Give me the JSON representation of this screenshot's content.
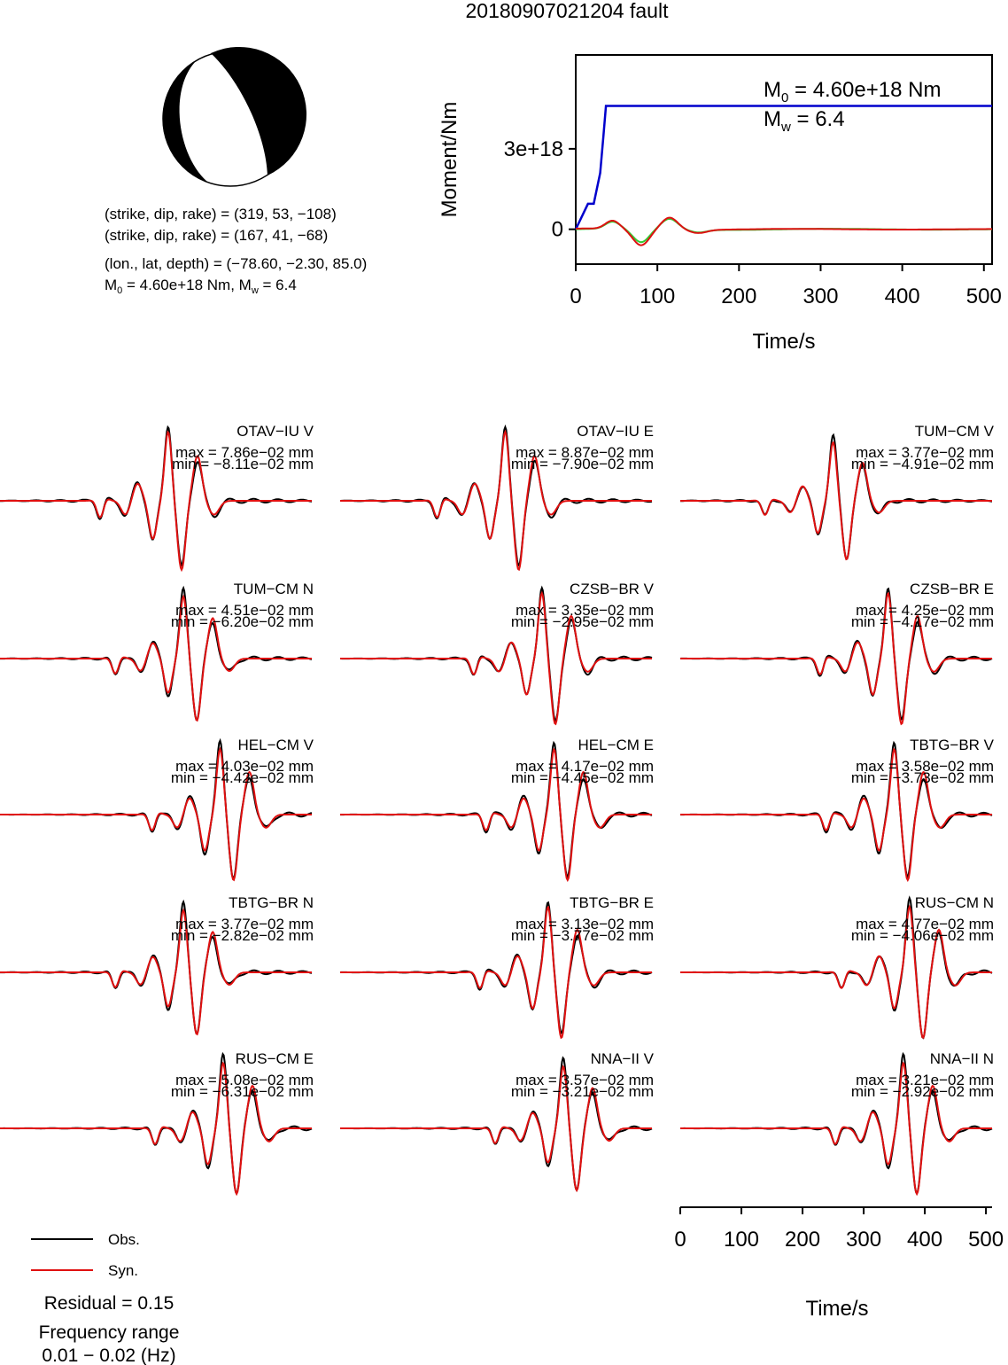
{
  "title": "20180907021204 fault",
  "mechanism": {
    "line1": "(strike, dip, rake) = (319, 53, −108)",
    "line2": "(strike, dip, rake) = (167, 41, −68)",
    "line3": "(lon., lat, depth) = (−78.60, −2.30, 85.0)",
    "line4_prefix": "M",
    "line4_sub": "0",
    "line4_mid": " = 4.60e+18 Nm, M",
    "line4_sub2": "w",
    "line4_suffix": " = 6.4"
  },
  "colors": {
    "obs": "#000000",
    "syn": "#e01010",
    "moment": "#0000cc",
    "green": "#33cc33",
    "red_stf": "#dd1111"
  },
  "chart_data": [
    {
      "type": "line",
      "name": "moment-rate",
      "xlabel": "Time/s",
      "ylabel": "Moment/Nm",
      "xlim": [
        0,
        510
      ],
      "ylim": [
        -1.3e+18,
        6.5e+18
      ],
      "xticks": [
        "0",
        "100",
        "200",
        "300",
        "400",
        "500"
      ],
      "yticks": [
        "0",
        "3e+18"
      ],
      "annot_m0_prefix": "M",
      "annot_m0_sub": "0",
      "annot_m0_suffix": " = 4.60e+18 Nm",
      "annot_mw_prefix": "M",
      "annot_mw_sub": "w",
      "annot_mw_suffix": " = 6.4",
      "cumulative": {
        "x": [
          0,
          15,
          22,
          22,
          30,
          34,
          37,
          60,
          510
        ],
        "y": [
          0,
          9.5e+17,
          9.5e+17,
          9.5e+17,
          2.1e+18,
          3.5e+18,
          4.6e+18,
          4.6e+18,
          4.6e+18
        ]
      }
    },
    {
      "type": "line",
      "name": "waveforms",
      "xlabel": "Time/s",
      "xlim": [
        0,
        510
      ],
      "xticks": [
        "0",
        "100",
        "200",
        "300",
        "400",
        "500"
      ],
      "legend": [
        "Obs.",
        "Syn."
      ],
      "residual": "Residual = 0.15",
      "freq_label": "Frequency range",
      "freq_range": "0.01 − 0.02 (Hz)",
      "stations": [
        {
          "name": "OTAV−IU V",
          "max": "max = 7.86e−02 mm",
          "min": "min = −8.11e−02 mm",
          "center": 275,
          "amp": 1.0
        },
        {
          "name": "OTAV−IU E",
          "max": "max = 8.87e−02 mm",
          "min": "min = −7.90e−02 mm",
          "center": 270,
          "amp": 1.0
        },
        {
          "name": "TUM−CM V",
          "max": "max = 3.77e−02 mm",
          "min": "min = −4.91e−02 mm",
          "center": 250,
          "amp": 0.85
        },
        {
          "name": "TUM−CM N",
          "max": "max = 4.51e−02 mm",
          "min": "min = −6.20e−02 mm",
          "center": 300,
          "amp": 0.9
        },
        {
          "name": "CZSB−BR V",
          "max": "max = 3.35e−02 mm",
          "min": "min = −2.95e−02 mm",
          "center": 330,
          "amp": 0.95
        },
        {
          "name": "CZSB−BR E",
          "max": "max = 4.25e−02 mm",
          "min": "min = −4.17e−02 mm",
          "center": 340,
          "amp": 0.95
        },
        {
          "name": "HEL−CM V",
          "max": "max = 4.03e−02 mm",
          "min": "min = −4.42e−02 mm",
          "center": 360,
          "amp": 0.95
        },
        {
          "name": "HEL−CM E",
          "max": "max = 4.17e−02 mm",
          "min": "min = −4.45e−02 mm",
          "center": 350,
          "amp": 0.95
        },
        {
          "name": "TBTG−BR V",
          "max": "max = 3.58e−02 mm",
          "min": "min = −3.73e−02 mm",
          "center": 350,
          "amp": 0.95
        },
        {
          "name": "TBTG−BR N",
          "max": "max = 3.77e−02 mm",
          "min": "min = −2.82e−02 mm",
          "center": 300,
          "amp": 0.9
        },
        {
          "name": "TBTG−BR E",
          "max": "max = 3.13e−02 mm",
          "min": "min = −3.77e−02 mm",
          "center": 340,
          "amp": 0.95
        },
        {
          "name": "RUS−CM N",
          "max": "max = 4.77e−02 mm",
          "min": "min = −4.06e−02 mm",
          "center": 375,
          "amp": 0.95
        },
        {
          "name": "RUS−CM E",
          "max": "max = 5.08e−02 mm",
          "min": "min = −6.31e−02 mm",
          "center": 365,
          "amp": 0.95
        },
        {
          "name": "NNA−II V",
          "max": "max = 3.57e−02 mm",
          "min": "min = −3.21e−02 mm",
          "center": 365,
          "amp": 0.9
        },
        {
          "name": "NNA−II N",
          "max": "max = 3.21e−02 mm",
          "min": "min = −2.92e−02 mm",
          "center": 365,
          "amp": 0.95
        }
      ]
    }
  ]
}
